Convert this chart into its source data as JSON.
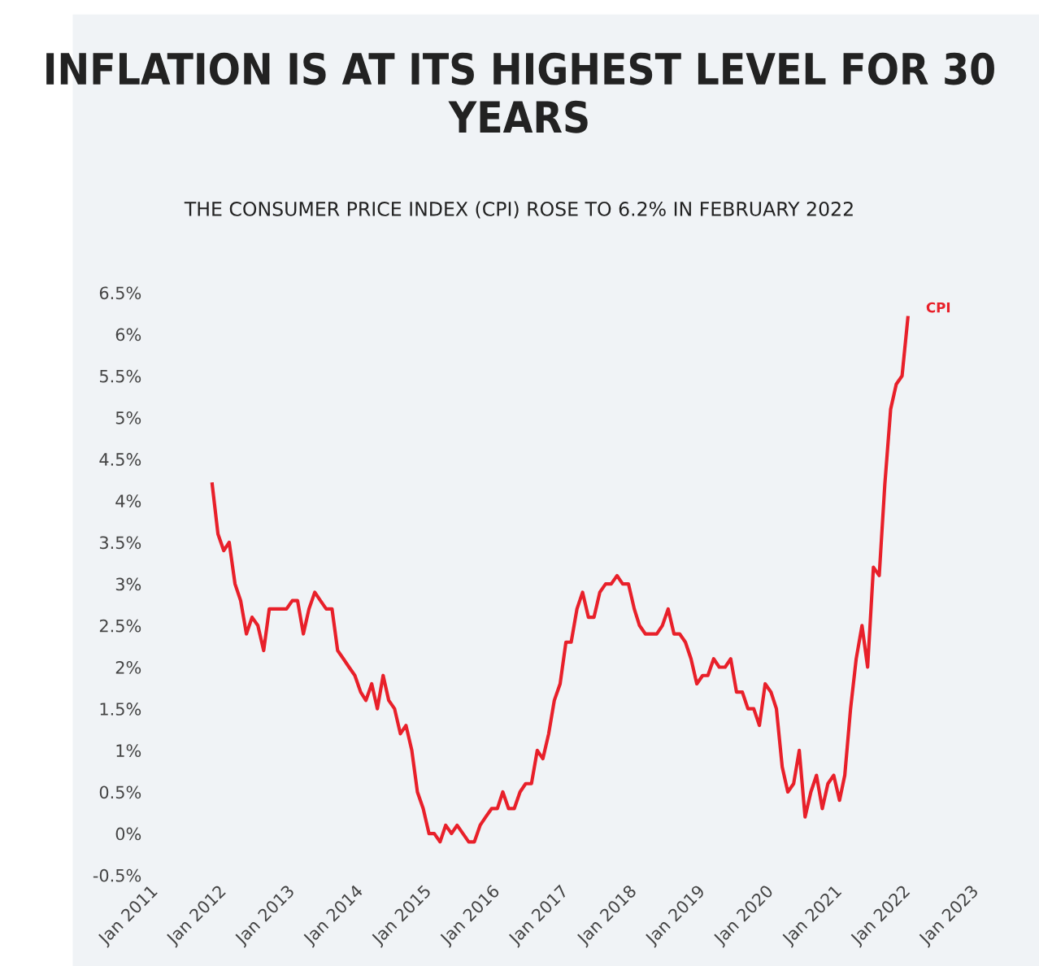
{
  "chart_data": {
    "type": "line",
    "title": "INFLATION IS AT ITS HIGHEST LEVEL FOR 30 YEARS",
    "subtitle": "THE CONSUMER PRICE INDEX (CPI) ROSE TO 6.2% IN FEBRUARY 2022",
    "x": [
      "2011-12",
      "2012-01",
      "2012-02",
      "2012-03",
      "2012-04",
      "2012-05",
      "2012-06",
      "2012-07",
      "2012-08",
      "2012-09",
      "2012-10",
      "2012-11",
      "2012-12",
      "2013-01",
      "2013-02",
      "2013-03",
      "2013-04",
      "2013-05",
      "2013-06",
      "2013-07",
      "2013-08",
      "2013-09",
      "2013-10",
      "2013-11",
      "2013-12",
      "2014-01",
      "2014-02",
      "2014-03",
      "2014-04",
      "2014-05",
      "2014-06",
      "2014-07",
      "2014-08",
      "2014-09",
      "2014-10",
      "2014-11",
      "2014-12",
      "2015-01",
      "2015-02",
      "2015-03",
      "2015-04",
      "2015-05",
      "2015-06",
      "2015-07",
      "2015-08",
      "2015-09",
      "2015-10",
      "2015-11",
      "2015-12",
      "2016-01",
      "2016-02",
      "2016-03",
      "2016-04",
      "2016-05",
      "2016-06",
      "2016-07",
      "2016-08",
      "2016-09",
      "2016-10",
      "2016-11",
      "2016-12",
      "2017-01",
      "2017-02",
      "2017-03",
      "2017-04",
      "2017-05",
      "2017-06",
      "2017-07",
      "2017-08",
      "2017-09",
      "2017-10",
      "2017-11",
      "2017-12",
      "2018-01",
      "2018-02",
      "2018-03",
      "2018-04",
      "2018-05",
      "2018-06",
      "2018-07",
      "2018-08",
      "2018-09",
      "2018-10",
      "2018-11",
      "2018-12",
      "2019-01",
      "2019-02",
      "2019-03",
      "2019-04",
      "2019-05",
      "2019-06",
      "2019-07",
      "2019-08",
      "2019-09",
      "2019-10",
      "2019-11",
      "2019-12",
      "2020-01",
      "2020-02",
      "2020-03",
      "2020-04",
      "2020-05",
      "2020-06",
      "2020-07",
      "2020-08",
      "2020-09",
      "2020-10",
      "2020-11",
      "2020-12",
      "2021-01",
      "2021-02",
      "2021-03",
      "2021-04",
      "2021-05",
      "2021-06",
      "2021-07",
      "2021-08",
      "2021-09",
      "2021-10",
      "2021-11",
      "2021-12",
      "2022-01",
      "2022-02"
    ],
    "series": [
      {
        "name": "CPI",
        "color": "#e8202a",
        "values": [
          4.2,
          3.6,
          3.4,
          3.5,
          3.0,
          2.8,
          2.4,
          2.6,
          2.5,
          2.2,
          2.7,
          2.7,
          2.7,
          2.7,
          2.8,
          2.8,
          2.4,
          2.7,
          2.9,
          2.8,
          2.7,
          2.7,
          2.2,
          2.1,
          2.0,
          1.9,
          1.7,
          1.6,
          1.8,
          1.5,
          1.9,
          1.6,
          1.5,
          1.2,
          1.3,
          1.0,
          0.5,
          0.3,
          0.0,
          0.0,
          -0.1,
          0.1,
          0.0,
          0.1,
          0.0,
          -0.1,
          -0.1,
          0.1,
          0.2,
          0.3,
          0.3,
          0.5,
          0.3,
          0.3,
          0.5,
          0.6,
          0.6,
          1.0,
          0.9,
          1.2,
          1.6,
          1.8,
          2.3,
          2.3,
          2.7,
          2.9,
          2.6,
          2.6,
          2.9,
          3.0,
          3.0,
          3.1,
          3.0,
          3.0,
          2.7,
          2.5,
          2.4,
          2.4,
          2.4,
          2.5,
          2.7,
          2.4,
          2.4,
          2.3,
          2.1,
          1.8,
          1.9,
          1.9,
          2.1,
          2.0,
          2.0,
          2.1,
          1.7,
          1.7,
          1.5,
          1.5,
          1.3,
          1.8,
          1.7,
          1.5,
          0.8,
          0.5,
          0.6,
          1.0,
          0.2,
          0.5,
          0.7,
          0.3,
          0.6,
          0.7,
          0.4,
          0.7,
          1.5,
          2.1,
          2.5,
          2.0,
          3.2,
          3.1,
          4.2,
          5.1,
          5.4,
          5.5,
          6.2
        ]
      }
    ],
    "xlim": [
      "2011-01",
      "2023-01"
    ],
    "xticks": [
      {
        "value": "2011-01",
        "label": "Jan 2011"
      },
      {
        "value": "2012-01",
        "label": "Jan 2012"
      },
      {
        "value": "2013-01",
        "label": "Jan 2013"
      },
      {
        "value": "2014-01",
        "label": "Jan 2014"
      },
      {
        "value": "2015-01",
        "label": "Jan 2015"
      },
      {
        "value": "2016-01",
        "label": "Jan 2016"
      },
      {
        "value": "2017-01",
        "label": "Jan 2017"
      },
      {
        "value": "2018-01",
        "label": "Jan 2018"
      },
      {
        "value": "2019-01",
        "label": "Jan 2019"
      },
      {
        "value": "2020-01",
        "label": "Jan 2020"
      },
      {
        "value": "2021-01",
        "label": "Jan 2021"
      },
      {
        "value": "2022-01",
        "label": "Jan 2022"
      },
      {
        "value": "2023-01",
        "label": "Jan 2023"
      }
    ],
    "ylim": [
      -0.5,
      6.5
    ],
    "yticks": [
      {
        "value": -0.5,
        "label": "-0.5%"
      },
      {
        "value": 0,
        "label": "0%"
      },
      {
        "value": 0.5,
        "label": "0.5%"
      },
      {
        "value": 1,
        "label": "1%"
      },
      {
        "value": 1.5,
        "label": "1.5%"
      },
      {
        "value": 2,
        "label": "2%"
      },
      {
        "value": 2.5,
        "label": "2.5%"
      },
      {
        "value": 3,
        "label": "3%"
      },
      {
        "value": 3.5,
        "label": "3.5%"
      },
      {
        "value": 4,
        "label": "4%"
      },
      {
        "value": 4.5,
        "label": "4.5%"
      },
      {
        "value": 5,
        "label": "5%"
      },
      {
        "value": 5.5,
        "label": "5.5%"
      },
      {
        "value": 6,
        "label": "6%"
      },
      {
        "value": 6.5,
        "label": "6.5%"
      }
    ],
    "legend": false,
    "grid": false,
    "marker": "none",
    "line_style": "solid"
  }
}
